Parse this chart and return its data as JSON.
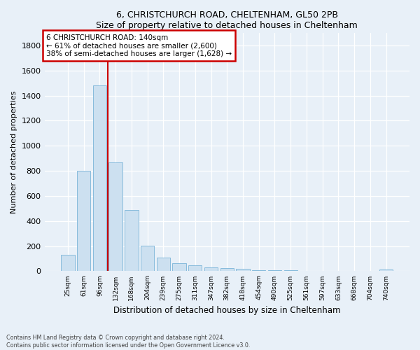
{
  "title1": "6, CHRISTCHURCH ROAD, CHELTENHAM, GL50 2PB",
  "title2": "Size of property relative to detached houses in Cheltenham",
  "xlabel": "Distribution of detached houses by size in Cheltenham",
  "ylabel": "Number of detached properties",
  "categories": [
    "25sqm",
    "61sqm",
    "96sqm",
    "132sqm",
    "168sqm",
    "204sqm",
    "239sqm",
    "275sqm",
    "311sqm",
    "347sqm",
    "382sqm",
    "418sqm",
    "454sqm",
    "490sqm",
    "525sqm",
    "561sqm",
    "597sqm",
    "633sqm",
    "668sqm",
    "704sqm",
    "740sqm"
  ],
  "values": [
    130,
    800,
    1480,
    870,
    490,
    205,
    110,
    65,
    45,
    32,
    25,
    20,
    10,
    8,
    6,
    4,
    3,
    2,
    1,
    1,
    14
  ],
  "bar_color": "#cce0f0",
  "bar_edge_color": "#7ab4d8",
  "vline_index": 2.5,
  "vline_color": "#cc0000",
  "annotation_line1": "6 CHRISTCHURCH ROAD: 140sqm",
  "annotation_line2": "← 61% of detached houses are smaller (2,600)",
  "annotation_line3": "38% of semi-detached houses are larger (1,628) →",
  "annotation_box_facecolor": "#ffffff",
  "annotation_box_edgecolor": "#cc0000",
  "ylim": [
    0,
    1900
  ],
  "yticks": [
    0,
    200,
    400,
    600,
    800,
    1000,
    1200,
    1400,
    1600,
    1800
  ],
  "footer1": "Contains HM Land Registry data © Crown copyright and database right 2024.",
  "footer2": "Contains public sector information licensed under the Open Government Licence v3.0.",
  "bg_color": "#e8f0f8",
  "grid_color": "#ffffff"
}
